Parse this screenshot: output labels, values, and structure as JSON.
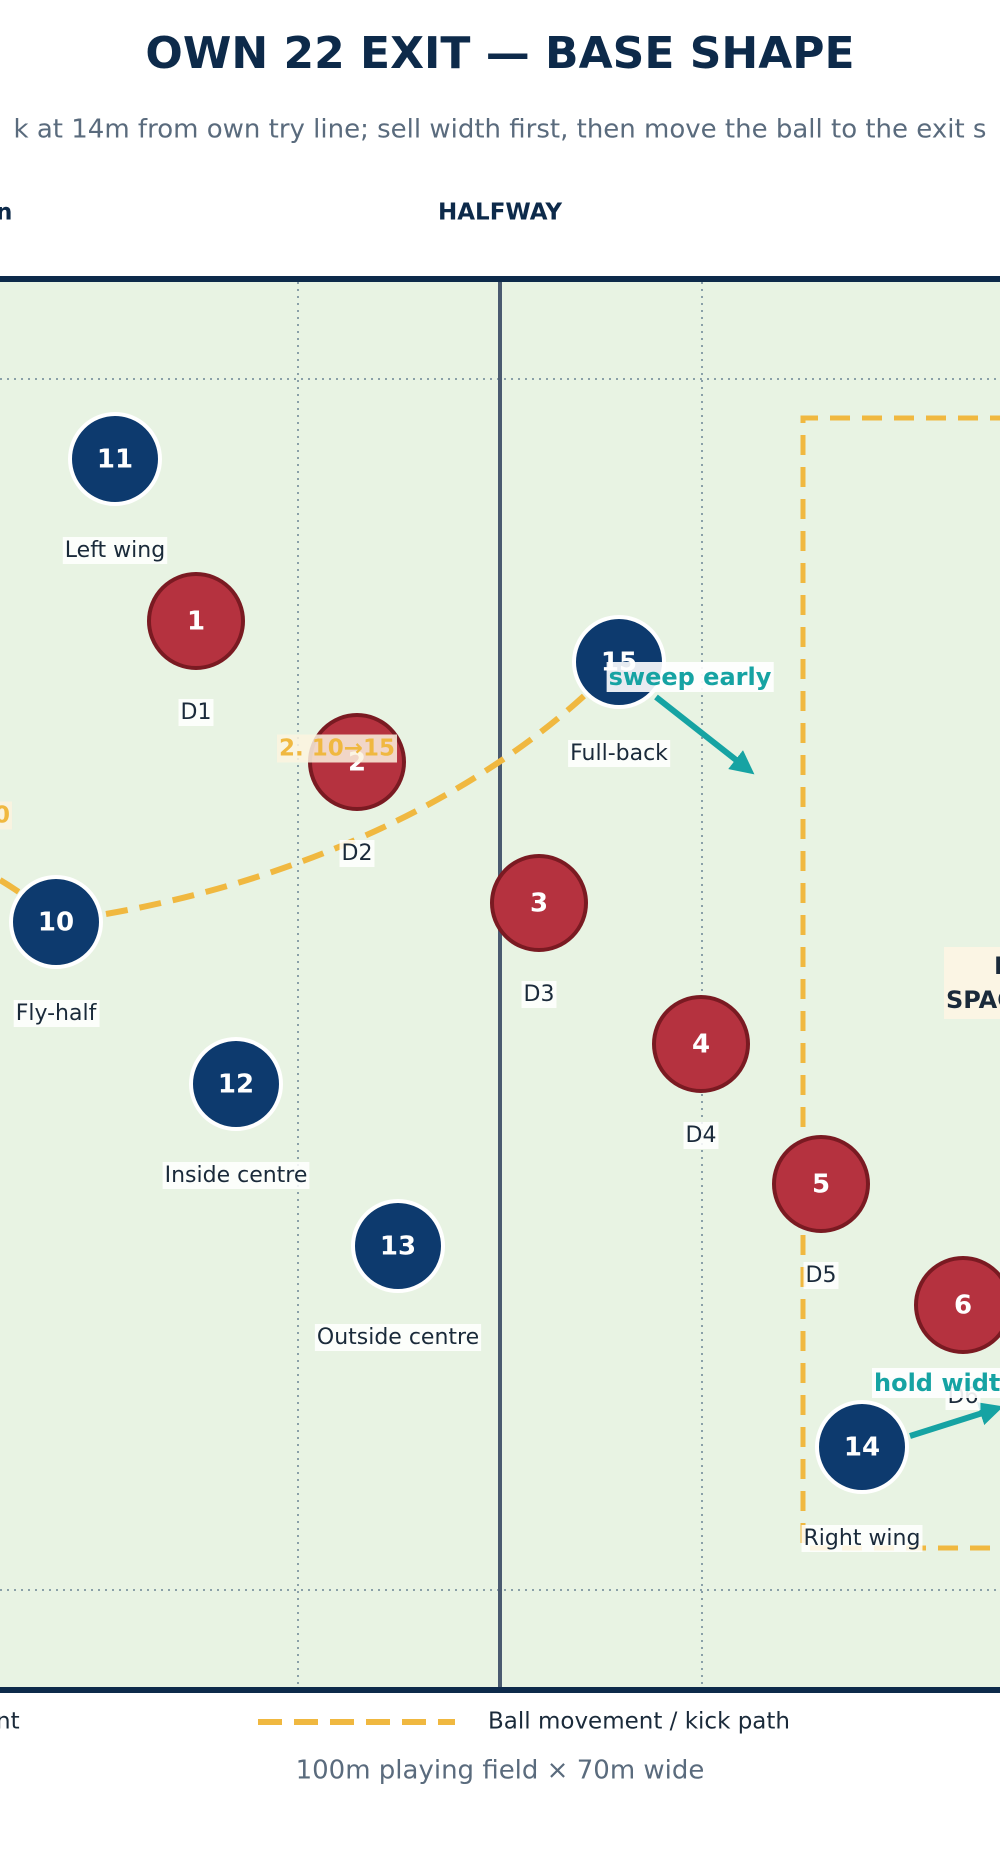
{
  "header": {
    "title": "OWN 22 EXIT — BASE SHAPE",
    "subtitle": "k at 14m from own try line; sell width first, then move the ball to the exit s"
  },
  "top_labels": {
    "left_fragment": "n",
    "halfway": "HALFWAY"
  },
  "attackers": [
    {
      "number": "11",
      "label": "Left wing"
    },
    {
      "number": "15",
      "label": "Full-back"
    },
    {
      "number": "10",
      "label": "Fly-half"
    },
    {
      "number": "12",
      "label": "Inside centre"
    },
    {
      "number": "13",
      "label": "Outside centre"
    },
    {
      "number": "14",
      "label": "Right wing"
    }
  ],
  "defenders": [
    {
      "number": "1",
      "label": "D1"
    },
    {
      "number": "2",
      "label": "D2"
    },
    {
      "number": "3",
      "label": "D3"
    },
    {
      "number": "4",
      "label": "D4"
    },
    {
      "number": "5",
      "label": "D5"
    },
    {
      "number": "6",
      "label": "D6"
    }
  ],
  "annotations": {
    "pass_left_fragment": "0",
    "pass_10_15": "2. 10→15",
    "sweep": "sweep early",
    "hold": "hold width",
    "space_line1": "E",
    "space_line2": "SPAC"
  },
  "legend": {
    "left_fragment": "nt",
    "ball": "Ball movement / kick path"
  },
  "footer": "100m playing field × 70m wide"
}
